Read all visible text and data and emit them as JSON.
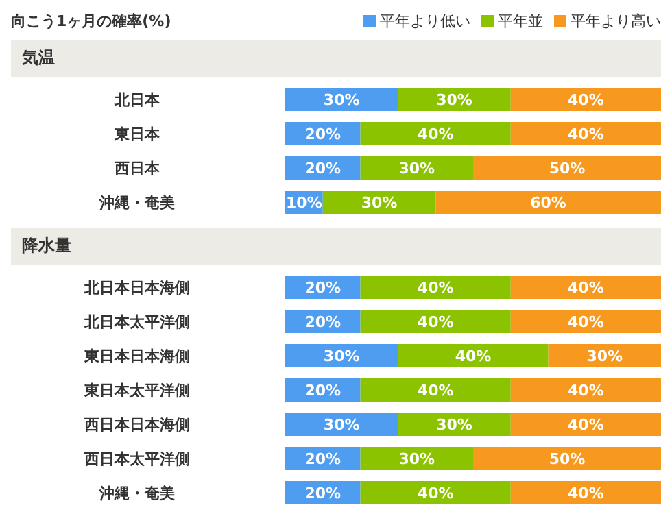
{
  "chart_data": [
    {
      "type": "bar",
      "title": "向こう1ヶ月の確率(%)",
      "subtitle": "気温",
      "orientation": "horizontal",
      "stacked": true,
      "legend": "top right",
      "tick_labels": "y",
      "xlim": [
        0,
        100
      ],
      "categories": [
        "北日本",
        "東日本",
        "西日本",
        "沖縄・奄美"
      ],
      "series": [
        {
          "name": "平年より低い",
          "color": "#4f9df0",
          "values": [
            30,
            20,
            20,
            10
          ],
          "value_labels": [
            "30%",
            "20%",
            "20%",
            "10%"
          ]
        },
        {
          "name": "平年並",
          "color": "#8cc300",
          "values": [
            30,
            40,
            30,
            30
          ],
          "value_labels": [
            "30%",
            "40%",
            "30%",
            "30%"
          ]
        },
        {
          "name": "平年より高い",
          "color": "#f7991e",
          "values": [
            40,
            40,
            50,
            60
          ],
          "value_labels": [
            "40%",
            "40%",
            "50%",
            "60%"
          ]
        }
      ]
    },
    {
      "type": "bar",
      "title": "降水量",
      "orientation": "horizontal",
      "stacked": true,
      "tick_labels": "y",
      "xlim": [
        0,
        100
      ],
      "categories": [
        "北日本日本海側",
        "北日本太平洋側",
        "東日本日本海側",
        "東日本太平洋側",
        "西日本日本海側",
        "西日本太平洋側",
        "沖縄・奄美"
      ],
      "series": [
        {
          "color": "#4f9df0",
          "values": [
            20,
            20,
            30,
            20,
            30,
            20,
            20
          ],
          "value_labels": [
            "20%",
            "20%",
            "30%",
            "20%",
            "30%",
            "20%",
            "20%"
          ]
        },
        {
          "color": "#8cc300",
          "values": [
            40,
            40,
            40,
            40,
            30,
            30,
            40
          ],
          "value_labels": [
            "40%",
            "40%",
            "40%",
            "40%",
            "30%",
            "30%",
            "40%"
          ]
        },
        {
          "color": "#f7991e",
          "values": [
            40,
            40,
            30,
            40,
            40,
            50,
            40
          ],
          "value_labels": [
            "40%",
            "40%",
            "30%",
            "40%",
            "40%",
            "50%",
            "40%"
          ]
        }
      ]
    }
  ]
}
